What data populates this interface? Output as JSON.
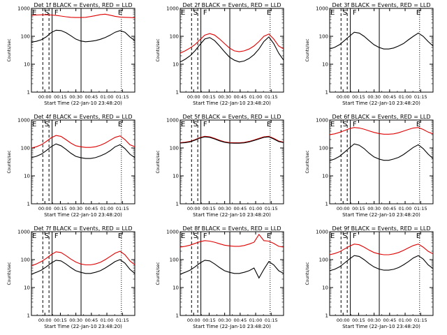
{
  "chart_data": [
    {
      "type": "line",
      "title": "Det 1f BLACK = Events, RED = LLD",
      "xlabel": "Start Time (22-Jan-10 23:48:20)",
      "ylabel": "Counts/sec",
      "x_ticks": [
        "00:00",
        "00:15",
        "00:30",
        "00:45",
        "01:00",
        "01:15"
      ],
      "y_ticks": [
        "1",
        "10",
        "100",
        "1000"
      ],
      "ylim": [
        1,
        1000
      ],
      "y_scale": "log",
      "markers": [
        "E",
        "S",
        "F",
        "E"
      ],
      "series": [
        {
          "color": "#000000",
          "values": [
            62,
            66,
            75,
            95,
            135,
            165,
            160,
            135,
            105,
            80,
            68,
            64,
            66,
            70,
            78,
            90,
            110,
            140,
            160,
            140,
            95,
            70
          ]
        },
        {
          "color": "#e00000",
          "values": [
            560,
            580,
            590,
            590,
            580,
            560,
            530,
            500,
            480,
            470,
            470,
            480,
            510,
            550,
            600,
            620,
            570,
            520,
            490,
            480,
            470,
            460
          ]
        }
      ]
    },
    {
      "type": "line",
      "title": "Det 2f BLACK = Events, RED = LLD",
      "xlabel": "Start Time (22-Jan-10 23:48:20)",
      "ylabel": "Counts/sec",
      "x_ticks": [
        "00:00",
        "00:15",
        "00:30",
        "00:45",
        "01:00",
        "01:15"
      ],
      "y_ticks": [
        "1",
        "10",
        "100",
        "1000"
      ],
      "ylim": [
        1,
        1000
      ],
      "y_scale": "log",
      "markers": [
        "E",
        "S",
        "F",
        "E"
      ],
      "series": [
        {
          "color": "#000000",
          "values": [
            12,
            15,
            20,
            30,
            50,
            80,
            90,
            70,
            45,
            28,
            18,
            14,
            12,
            13,
            16,
            22,
            35,
            65,
            95,
            55,
            25,
            14
          ]
        },
        {
          "color": "#e00000",
          "values": [
            25,
            30,
            38,
            50,
            75,
            110,
            125,
            110,
            80,
            55,
            38,
            30,
            28,
            30,
            35,
            45,
            65,
            100,
            120,
            80,
            45,
            35
          ]
        }
      ]
    },
    {
      "type": "line",
      "title": "Det 3f BLACK = Events, RED = LLD",
      "xlabel": "Start Time (22-Jan-10 23:48:20)",
      "ylabel": "Counts/sec",
      "x_ticks": [
        "00:00",
        "00:15",
        "00:30",
        "00:45",
        "01:00",
        "01:15"
      ],
      "y_ticks": [
        "1",
        "10",
        "100",
        "1000"
      ],
      "ylim": [
        1,
        1000
      ],
      "y_scale": "log",
      "markers": [
        "E",
        "S",
        "F",
        "E"
      ],
      "series": [
        {
          "color": "#000000",
          "values": [
            35,
            40,
            50,
            70,
            100,
            140,
            130,
            100,
            70,
            50,
            40,
            35,
            35,
            38,
            45,
            55,
            75,
            100,
            130,
            100,
            65,
            45
          ]
        }
      ]
    },
    {
      "type": "line",
      "title": "Det 4f BLACK = Events, RED = LLD",
      "xlabel": "Start Time (22-Jan-10 23:48:20)",
      "ylabel": "Counts/sec",
      "x_ticks": [
        "00:00",
        "00:15",
        "00:30",
        "00:45",
        "01:00",
        "01:15"
      ],
      "y_ticks": [
        "1",
        "10",
        "100",
        "1000"
      ],
      "ylim": [
        1,
        1000
      ],
      "y_scale": "log",
      "markers": [
        "E",
        "S",
        "F",
        "E"
      ],
      "series": [
        {
          "color": "#000000",
          "values": [
            45,
            50,
            60,
            80,
            110,
            140,
            120,
            90,
            65,
            50,
            45,
            42,
            42,
            45,
            52,
            62,
            80,
            110,
            130,
            95,
            60,
            45
          ]
        },
        {
          "color": "#e00000",
          "values": [
            100,
            110,
            130,
            170,
            230,
            280,
            260,
            200,
            150,
            120,
            110,
            105,
            105,
            110,
            125,
            150,
            190,
            240,
            270,
            200,
            130,
            110
          ]
        }
      ]
    },
    {
      "type": "line",
      "title": "Det 5f BLACK = Events, RED = LLD",
      "xlabel": "Start Time (22-Jan-10 23:48:20)",
      "ylabel": "Counts/sec",
      "x_ticks": [
        "00:00",
        "00:15",
        "00:30",
        "00:45",
        "01:00",
        "01:15"
      ],
      "y_ticks": [
        "1",
        "10",
        "100",
        "1000"
      ],
      "ylim": [
        1,
        1000
      ],
      "y_scale": "log",
      "markers": [
        "E",
        "S",
        "F",
        "E"
      ],
      "series": [
        {
          "color": "#000000",
          "values": [
            150,
            155,
            165,
            190,
            225,
            250,
            240,
            210,
            180,
            160,
            150,
            148,
            148,
            152,
            165,
            185,
            210,
            240,
            250,
            210,
            170,
            155
          ]
        },
        {
          "color": "#e00000",
          "values": [
            155,
            160,
            172,
            198,
            235,
            262,
            250,
            220,
            188,
            166,
            156,
            153,
            153,
            158,
            172,
            192,
            220,
            250,
            262,
            220,
            178,
            160
          ]
        }
      ]
    },
    {
      "type": "line",
      "title": "Det 6f BLACK = Events, RED = LLD",
      "xlabel": "Start Time (22-Jan-10 23:48:20)",
      "ylabel": "Counts/sec",
      "x_ticks": [
        "00:00",
        "00:15",
        "00:30",
        "00:45",
        "01:00",
        "01:15"
      ],
      "y_ticks": [
        "1",
        "10",
        "100",
        "1000"
      ],
      "ylim": [
        1,
        1000
      ],
      "y_scale": "log",
      "markers": [
        "E",
        "S",
        "F",
        "E"
      ],
      "series": [
        {
          "color": "#000000",
          "values": [
            35,
            40,
            50,
            70,
            100,
            140,
            125,
            95,
            65,
            48,
            40,
            36,
            36,
            40,
            46,
            58,
            78,
            105,
            130,
            95,
            60,
            42
          ]
        },
        {
          "color": "#e00000",
          "values": [
            300,
            320,
            360,
            420,
            490,
            540,
            520,
            470,
            410,
            360,
            330,
            310,
            310,
            320,
            350,
            400,
            460,
            520,
            540,
            460,
            370,
            320
          ]
        }
      ]
    },
    {
      "type": "line",
      "title": "Det 7f BLACK = Events, RED = LLD",
      "xlabel": "Start Time (22-Jan-10 23:48:20)",
      "ylabel": "Counts/sec",
      "x_ticks": [
        "00:00",
        "00:15",
        "00:30",
        "00:45",
        "01:00",
        "01:15"
      ],
      "y_ticks": [
        "1",
        "10",
        "100",
        "1000"
      ],
      "ylim": [
        1,
        1000
      ],
      "y_scale": "log",
      "markers": [
        "E",
        "S",
        "F",
        "E"
      ],
      "series": [
        {
          "color": "#000000",
          "values": [
            30,
            35,
            42,
            55,
            75,
            95,
            90,
            70,
            52,
            40,
            35,
            32,
            32,
            35,
            40,
            50,
            65,
            85,
            100,
            75,
            45,
            32
          ]
        },
        {
          "color": "#e00000",
          "values": [
            60,
            70,
            85,
            110,
            150,
            190,
            180,
            140,
            105,
            82,
            70,
            65,
            65,
            70,
            80,
            100,
            130,
            170,
            200,
            150,
            90,
            65
          ]
        }
      ]
    },
    {
      "type": "line",
      "title": "Det 8f BLACK = Events, RED = LLD",
      "xlabel": "Start Time (22-Jan-10 23:48:20)",
      "ylabel": "Counts/sec",
      "x_ticks": [
        "00:00",
        "00:15",
        "00:30",
        "00:45",
        "01:00",
        "01:15"
      ],
      "y_ticks": [
        "1",
        "10",
        "100",
        "1000"
      ],
      "ylim": [
        1,
        1000
      ],
      "y_scale": "log",
      "markers": [
        "E",
        "S",
        "F",
        "E"
      ],
      "series": [
        {
          "color": "#000000",
          "values": [
            30,
            35,
            42,
            55,
            75,
            95,
            90,
            70,
            52,
            40,
            35,
            32,
            32,
            35,
            40,
            50,
            22,
            45,
            85,
            65,
            40,
            32
          ]
        },
        {
          "color": "#e00000",
          "values": [
            280,
            300,
            330,
            380,
            440,
            480,
            460,
            420,
            370,
            330,
            310,
            300,
            300,
            320,
            360,
            420,
            800,
            480,
            460,
            380,
            300,
            280
          ]
        }
      ]
    },
    {
      "type": "line",
      "title": "Det 9f BLACK = Events, RED = LLD",
      "xlabel": "Start Time (22-Jan-10 23:48:20)",
      "ylabel": "Counts/sec",
      "x_ticks": [
        "00:00",
        "00:15",
        "00:30",
        "00:45",
        "01:00",
        "01:15"
      ],
      "y_ticks": [
        "1",
        "10",
        "100",
        "1000"
      ],
      "ylim": [
        1,
        1000
      ],
      "y_scale": "log",
      "markers": [
        "E",
        "S",
        "F",
        "E"
      ],
      "series": [
        {
          "color": "#000000",
          "values": [
            40,
            45,
            55,
            75,
            105,
            140,
            130,
            100,
            72,
            55,
            46,
            42,
            42,
            45,
            52,
            65,
            85,
            115,
            140,
            105,
            65,
            48
          ]
        },
        {
          "color": "#e00000",
          "values": [
            150,
            165,
            190,
            240,
            300,
            360,
            340,
            280,
            220,
            180,
            160,
            150,
            150,
            160,
            180,
            215,
            265,
            320,
            360,
            280,
            200,
            160
          ]
        }
      ]
    }
  ]
}
